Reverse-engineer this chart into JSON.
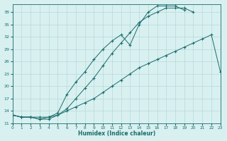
{
  "xlabel": "Humidex (Indice chaleur)",
  "bg_color": "#d8f0f0",
  "line_color": "#1a6b6b",
  "grid_color": "#b8d8d8",
  "xlim": [
    0,
    23
  ],
  "ylim": [
    11,
    40
  ],
  "yticks": [
    11,
    14,
    17,
    20,
    23,
    26,
    29,
    32,
    35,
    38
  ],
  "xticks": [
    0,
    1,
    2,
    3,
    4,
    5,
    6,
    7,
    8,
    9,
    10,
    11,
    12,
    13,
    14,
    15,
    16,
    17,
    18,
    19,
    20,
    21,
    22,
    23
  ],
  "line1_x": [
    0,
    1,
    2,
    3,
    4,
    5,
    6,
    7,
    8,
    9,
    10,
    11,
    12,
    13,
    14,
    15,
    16,
    17,
    18,
    19,
    20,
    21,
    22,
    23
  ],
  "line1_y": [
    13,
    12.5,
    12.5,
    12.5,
    12.5,
    13,
    14,
    15,
    16,
    17,
    18.5,
    20,
    21.5,
    23,
    24.5,
    25.5,
    26.5,
    27.5,
    28.5,
    29.5,
    30.5,
    31.5,
    32.5,
    23.5
  ],
  "line2_x": [
    0,
    1,
    2,
    3,
    4,
    5,
    6,
    7,
    8,
    9,
    10,
    11,
    12,
    13,
    14,
    15,
    16,
    17,
    18,
    19
  ],
  "line2_y": [
    13,
    12.5,
    12.5,
    12,
    12.5,
    13.5,
    18,
    21,
    23.5,
    26.5,
    29,
    31,
    32.5,
    30,
    35,
    38,
    39.5,
    39.5,
    39.5,
    38.5
  ],
  "line3_x": [
    0,
    1,
    2,
    3,
    4,
    5,
    6,
    7,
    8,
    9,
    10,
    11,
    12,
    13,
    14,
    15,
    16,
    17,
    18,
    19,
    20
  ],
  "line3_y": [
    13,
    12.5,
    12.5,
    12,
    12,
    13,
    14.5,
    17,
    19.5,
    22,
    25,
    28,
    30.5,
    33,
    35.5,
    37,
    38,
    39,
    39,
    39,
    38
  ]
}
